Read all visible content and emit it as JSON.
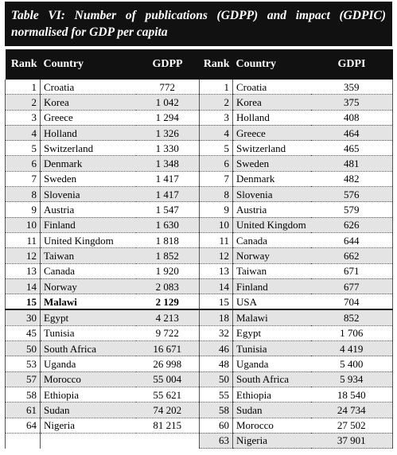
{
  "title": "Table VI: Number of publications (GDPP) and impact (GDPIC) normalised for GDP per capita",
  "headers": [
    "Rank",
    "Country",
    "GDPP",
    "Rank",
    "Country",
    "GDPI"
  ],
  "left_rows": [
    [
      "1",
      "Croatia",
      "772"
    ],
    [
      "2",
      "Korea",
      "1 042"
    ],
    [
      "3",
      "Greece",
      "1 294"
    ],
    [
      "4",
      "Holland",
      "1 326"
    ],
    [
      "5",
      "Switzerland",
      "1 330"
    ],
    [
      "6",
      "Denmark",
      "1 348"
    ],
    [
      "7",
      "Sweden",
      "1 417"
    ],
    [
      "8",
      "Slovenia",
      "1 417"
    ],
    [
      "9",
      "Austria",
      "1 547"
    ],
    [
      "10",
      "Finland",
      "1 630"
    ],
    [
      "11",
      "United Kingdom",
      "1 818"
    ],
    [
      "12",
      "Taiwan",
      "1 852"
    ],
    [
      "13",
      "Canada",
      "1 920"
    ],
    [
      "14",
      "Norway",
      "2 083"
    ],
    [
      "15",
      "Malawi",
      "2 129"
    ],
    [
      "30",
      "Egypt",
      "4 213"
    ],
    [
      "45",
      "Tunisia",
      "9 722"
    ],
    [
      "50",
      "South Africa",
      "16 671"
    ],
    [
      "53",
      "Uganda",
      "26 998"
    ],
    [
      "57",
      "Morocco",
      "55 004"
    ],
    [
      "58",
      "Ethiopia",
      "55 621"
    ],
    [
      "61",
      "Sudan",
      "74 202"
    ],
    [
      "64",
      "Nigeria",
      "81 215"
    ]
  ],
  "right_rows": [
    [
      "1",
      "Croatia",
      "359"
    ],
    [
      "2",
      "Korea",
      "375"
    ],
    [
      "3",
      "Holland",
      "408"
    ],
    [
      "4",
      "Greece",
      "464"
    ],
    [
      "5",
      "Switzerland",
      "465"
    ],
    [
      "6",
      "Sweden",
      "481"
    ],
    [
      "7",
      "Denmark",
      "482"
    ],
    [
      "8",
      "Slovenia",
      "576"
    ],
    [
      "9",
      "Austria",
      "579"
    ],
    [
      "10",
      "United Kingdom",
      "626"
    ],
    [
      "11",
      "Canada",
      "644"
    ],
    [
      "12",
      "Norway",
      "662"
    ],
    [
      "13",
      "Taiwan",
      "671"
    ],
    [
      "14",
      "Finland",
      "677"
    ],
    [
      "15",
      "USA",
      "704"
    ],
    [
      "18",
      "Malawi",
      "852"
    ],
    [
      "32",
      "Egypt",
      "1 706"
    ],
    [
      "46",
      "Tunisia",
      "4 419"
    ],
    [
      "48",
      "Uganda",
      "5 400"
    ],
    [
      "50",
      "South Africa",
      "5 934"
    ],
    [
      "55",
      "Ethiopia",
      "18 540"
    ],
    [
      "58",
      "Sudan",
      "24 734"
    ],
    [
      "60",
      "Morocco",
      "27 502"
    ],
    [
      "63",
      "Nigeria",
      "37 901"
    ]
  ]
}
